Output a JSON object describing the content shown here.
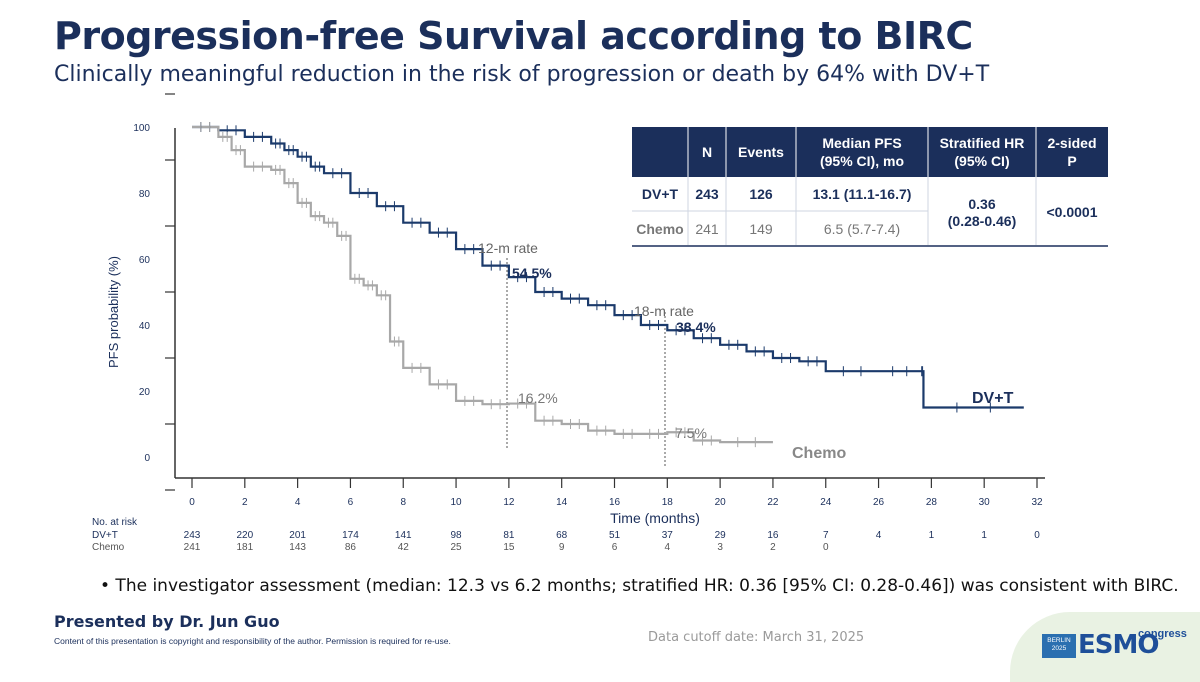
{
  "header": {
    "title": "Progression-free Survival according to BIRC",
    "subtitle": "Clinically meaningful reduction in the risk of progression or death by 64% with DV+T"
  },
  "table": {
    "headers": [
      "",
      "N",
      "Events",
      "Median PFS (95% CI), mo",
      "Stratified HR (95% CI)",
      "2-sided P"
    ],
    "header_lines": {
      "n": "N",
      "events": "Events",
      "median_1": "Median PFS",
      "median_2": "(95% CI), mo",
      "hr_1": "Stratified HR",
      "hr_2": "(95% CI)",
      "p_1": "2-sided",
      "p_2": "P"
    },
    "rows": [
      {
        "arm": "DV+T",
        "n": "243",
        "events": "126",
        "median": "13.1 (11.1-16.7)"
      },
      {
        "arm": "Chemo",
        "n": "241",
        "events": "149",
        "median": "6.5 (5.7-7.4)"
      }
    ],
    "hr_1": "0.36",
    "hr_2": "(0.28-0.46)",
    "p": "<0.0001",
    "header_color": "#1b2f5b"
  },
  "chart_data": {
    "type": "line",
    "title": "",
    "xlabel": "Time (months)",
    "ylabel": "PFS probability (%)",
    "xlim": [
      0,
      32
    ],
    "ylim": [
      0,
      100
    ],
    "x_ticks": [
      0,
      2,
      4,
      6,
      8,
      10,
      12,
      14,
      16,
      18,
      20,
      22,
      24,
      26,
      28,
      30,
      32
    ],
    "y_ticks": [
      0,
      20,
      40,
      60,
      80,
      100
    ],
    "series": [
      {
        "name": "DV+T",
        "color": "#1b3a6b",
        "points": [
          [
            0,
            100
          ],
          [
            1,
            99
          ],
          [
            2,
            97
          ],
          [
            3,
            95
          ],
          [
            3.5,
            93
          ],
          [
            4,
            91
          ],
          [
            4.5,
            88
          ],
          [
            5,
            86
          ],
          [
            6,
            80
          ],
          [
            7,
            76
          ],
          [
            8,
            71
          ],
          [
            9,
            68
          ],
          [
            10,
            63
          ],
          [
            11,
            58
          ],
          [
            12,
            54.5
          ],
          [
            13,
            50
          ],
          [
            14,
            48
          ],
          [
            15,
            46
          ],
          [
            16,
            43
          ],
          [
            17,
            40
          ],
          [
            18,
            38.4
          ],
          [
            19,
            36
          ],
          [
            20,
            34
          ],
          [
            21,
            32
          ],
          [
            22,
            30
          ],
          [
            23,
            29
          ],
          [
            24,
            26
          ],
          [
            26,
            26
          ],
          [
            27.6,
            26
          ],
          [
            27.7,
            15
          ],
          [
            31.5,
            15
          ]
        ]
      },
      {
        "name": "Chemo",
        "color": "#a8a8a8",
        "points": [
          [
            0,
            100
          ],
          [
            1,
            97
          ],
          [
            1.5,
            93
          ],
          [
            2,
            88
          ],
          [
            3,
            87
          ],
          [
            3.5,
            83
          ],
          [
            4,
            77
          ],
          [
            4.5,
            73
          ],
          [
            5,
            71
          ],
          [
            5.5,
            67
          ],
          [
            6,
            54
          ],
          [
            6.5,
            52
          ],
          [
            7,
            49
          ],
          [
            7.5,
            35
          ],
          [
            8,
            27
          ],
          [
            9,
            22
          ],
          [
            10,
            17
          ],
          [
            11,
            16
          ],
          [
            12,
            16.2
          ],
          [
            13,
            11
          ],
          [
            14,
            10
          ],
          [
            15,
            8
          ],
          [
            16,
            7
          ],
          [
            17,
            7
          ],
          [
            18,
            7.5
          ],
          [
            19,
            5
          ],
          [
            20,
            4.5
          ],
          [
            22,
            4.5
          ]
        ]
      }
    ],
    "annotations": [
      {
        "text": "12-m rate",
        "x": 12
      },
      {
        "text": "54.5%",
        "series": "DV+T",
        "x": 12,
        "y": 54.5
      },
      {
        "text": "16.2%",
        "series": "Chemo",
        "x": 12,
        "y": 16.2
      },
      {
        "text": "18-m rate",
        "x": 18
      },
      {
        "text": "38.4%",
        "series": "DV+T",
        "x": 18,
        "y": 38.4
      },
      {
        "text": "7.5%",
        "series": "Chemo",
        "x": 18,
        "y": 7.5
      }
    ],
    "series_labels": {
      "dvt": "DV+T",
      "chemo": "Chemo"
    },
    "at_risk": {
      "title": "No. at risk",
      "times": [
        0,
        2,
        4,
        6,
        8,
        10,
        12,
        14,
        16,
        18,
        20,
        22,
        24,
        26,
        28,
        30,
        32
      ],
      "rows": [
        {
          "name": "DV+T",
          "values": [
            "243",
            "220",
            "201",
            "174",
            "141",
            "98",
            "81",
            "68",
            "51",
            "37",
            "29",
            "16",
            "7",
            "4",
            "1",
            "1",
            "0"
          ]
        },
        {
          "name": "Chemo",
          "values": [
            "241",
            "181",
            "143",
            "86",
            "42",
            "25",
            "15",
            "9",
            "6",
            "4",
            "3",
            "2",
            "0",
            "",
            "",
            "",
            ""
          ]
        }
      ]
    }
  },
  "footer": {
    "bullet": "• The investigator assessment (median: 12.3 vs 6.2 months; stratified HR: 0.36 [95% CI: 0.28-0.46]) was consistent with BIRC.",
    "presented": "Presented by Dr. Jun Guo",
    "copyright": "Content of this presentation is copyright and responsibility of the author. Permission is required for re-use.",
    "cutoff": "Data cutoff date: March 31, 2025",
    "logo_city": "BERLIN",
    "logo_year": "2025",
    "logo_name": "ESMO",
    "logo_suffix": "congress"
  }
}
